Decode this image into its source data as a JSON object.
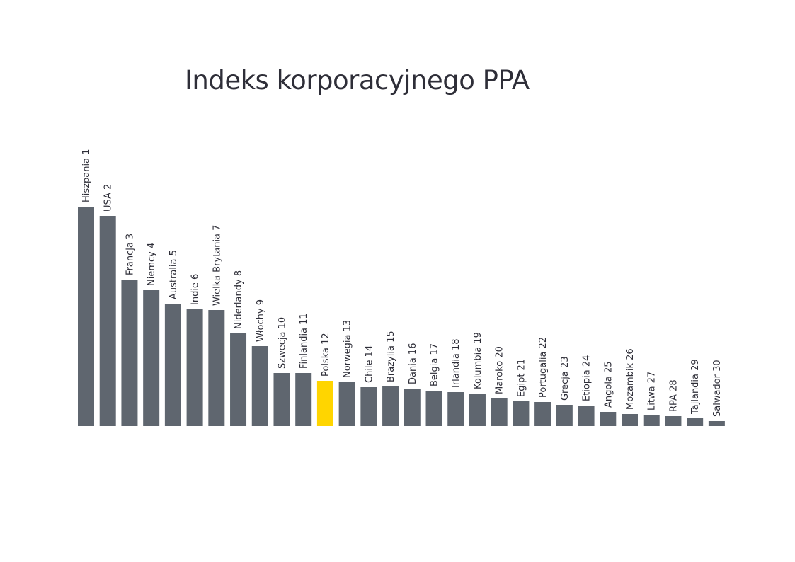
{
  "chart_data": {
    "type": "bar",
    "title": "Indeks korporacyjnego PPA",
    "xlabel": "",
    "ylabel": "",
    "grid": false,
    "categories": [
      "Hiszpania 1",
      "USA 2",
      "Francja 3",
      "Niemcy 4",
      "Australia 5",
      "Indie 6",
      "Wielka Brytania 7",
      "Niderlandy 8",
      "Włochy 9",
      "Szwecja 10",
      "Finlandia 11",
      "Polska 12",
      "Norwegia 13",
      "Chile 14",
      "Brazylia 15",
      "Dania 16",
      "Belgia 17",
      "Irlandia 18",
      "Kolumbia 19",
      "Maroko 20",
      "Egipt 21",
      "Portugalia 22",
      "Grecja 23",
      "Etiopia 24",
      "Angola 25",
      "Mozambik 26",
      "Litwa 27",
      "RPA 28",
      "Tajlandia 29",
      "Salwador 30"
    ],
    "values": [
      310,
      297,
      207,
      192,
      173,
      165,
      164,
      131,
      113,
      75,
      75,
      64,
      62,
      55,
      56,
      53,
      50,
      48,
      46,
      39,
      35,
      34,
      30,
      29,
      20,
      17,
      16,
      14,
      11,
      7
    ],
    "highlight_category": "Polska 12",
    "colors": {
      "bar": "#5f666f",
      "highlight": "#ffd500",
      "text": "#2e2e38"
    }
  }
}
